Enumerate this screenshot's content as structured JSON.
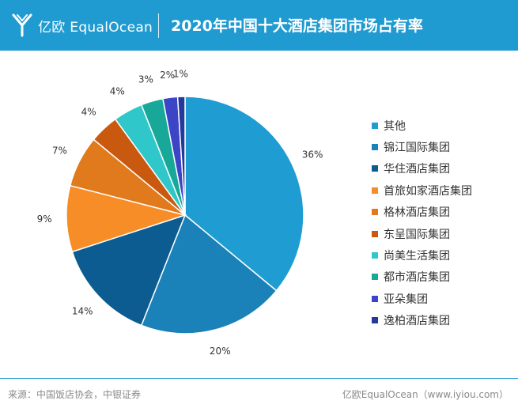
{
  "header": {
    "logo_text": "亿欧 EqualOcean",
    "title": "2020年中国十大酒店集团市场占有率"
  },
  "chart_data": {
    "type": "pie",
    "title": "2020年中国十大酒店集团市场占有率",
    "labels": [
      "其他",
      "锦江国际集团",
      "华住酒店集团",
      "首旅如家酒店集团",
      "格林酒店集团",
      "东呈国际集团",
      "尚美生活集团",
      "都市酒店集团",
      "亚朵集团",
      "逸柏酒店集团"
    ],
    "values": [
      36,
      20,
      14,
      9,
      7,
      4,
      4,
      3,
      2,
      1
    ],
    "value_labels": [
      "36%",
      "20%",
      "14%",
      "9%",
      "7%",
      "4%",
      "4%",
      "3%",
      "2%",
      "1%"
    ],
    "colors": [
      "#1f9dd3",
      "#1a82b8",
      "#0c5c91",
      "#f68d26",
      "#e07a1c",
      "#c9590e",
      "#2fc7c9",
      "#18a89a",
      "#3b45c5",
      "#243a9a"
    ],
    "legend_position": "right"
  },
  "footer": {
    "source": "来源：中国饭店协会，中银证券",
    "brand": "亿欧EqualOcean（www.iyiou.com）"
  }
}
